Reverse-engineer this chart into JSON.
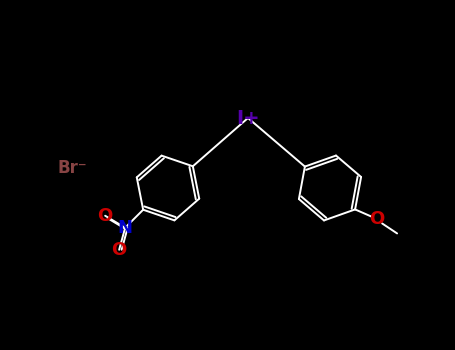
{
  "bg_color": "#000000",
  "bond_color": "#ffffff",
  "iodine_color": "#5500aa",
  "nitrogen_color": "#0000cc",
  "oxygen_color": "#cc0000",
  "bromine_color": "#884444",
  "iodine_label": "I+",
  "nitrogen_label": "N",
  "oxygen_nitro_labels": [
    "O",
    "O"
  ],
  "bromine_label": "Br⁻",
  "oxygen_methoxy_label": "O",
  "figsize": [
    4.55,
    3.5
  ],
  "dpi": 100,
  "bond_lw": 1.4,
  "label_fontsize": 13
}
